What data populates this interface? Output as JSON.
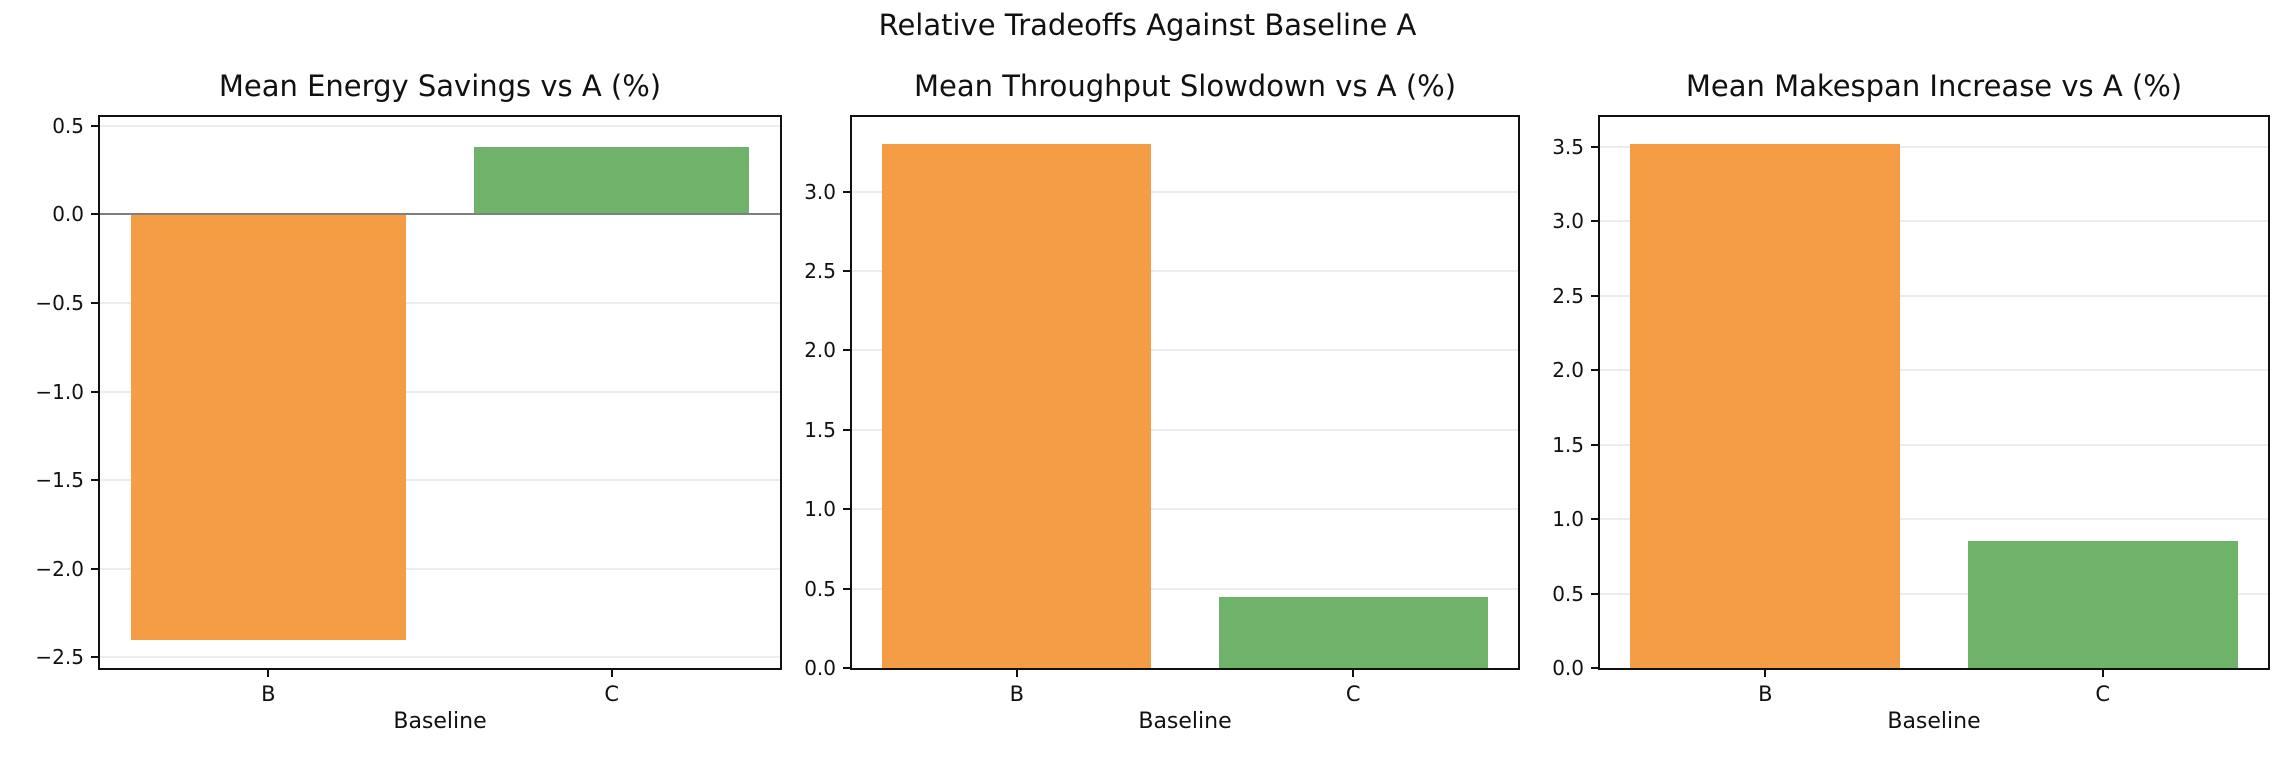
{
  "figure": {
    "suptitle": "Relative Tradeoffs Against Baseline A",
    "background": "#ffffff"
  },
  "colors": {
    "bar_orange": "#f49d44",
    "bar_green": "#6fb26a",
    "spine": "#111111",
    "grid": "#ececec",
    "zero_line": "#7f7f7f",
    "text": "#111111"
  },
  "chart_data": [
    {
      "type": "bar",
      "title": "Mean Energy Savings vs A (%)",
      "xlabel": "Baseline",
      "categories": [
        "B",
        "C"
      ],
      "values": [
        -2.4,
        0.38
      ],
      "bar_colors": [
        "#f49d44",
        "#6fb26a"
      ],
      "ylim": [
        -2.56,
        0.55
      ],
      "yticks": [
        0.5,
        0.0,
        -0.5,
        -1.0,
        -1.5,
        -2.0,
        -2.5
      ],
      "ytick_labels": [
        "0.5",
        "0.0",
        "−0.5",
        "−1.0",
        "−1.5",
        "−2.0",
        "−2.5"
      ],
      "grid": true,
      "zero_line": true,
      "legend": "none"
    },
    {
      "type": "bar",
      "title": "Mean Throughput Slowdown vs A (%)",
      "xlabel": "Baseline",
      "categories": [
        "B",
        "C"
      ],
      "values": [
        3.3,
        0.45
      ],
      "bar_colors": [
        "#f49d44",
        "#6fb26a"
      ],
      "ylim": [
        0.0,
        3.47
      ],
      "yticks": [
        3.0,
        2.5,
        2.0,
        1.5,
        1.0,
        0.5,
        0.0
      ],
      "ytick_labels": [
        "3.0",
        "2.5",
        "2.0",
        "1.5",
        "1.0",
        "0.5",
        "0.0"
      ],
      "grid": true,
      "zero_line": false,
      "legend": "none"
    },
    {
      "type": "bar",
      "title": "Mean Makespan Increase vs A (%)",
      "xlabel": "Baseline",
      "categories": [
        "B",
        "C"
      ],
      "values": [
        3.52,
        0.85
      ],
      "bar_colors": [
        "#f49d44",
        "#6fb36b"
      ],
      "ylim": [
        0.0,
        3.7
      ],
      "yticks": [
        3.5,
        3.0,
        2.5,
        2.0,
        1.5,
        1.0,
        0.5,
        0.0
      ],
      "ytick_labels": [
        "3.5",
        "3.0",
        "2.5",
        "2.0",
        "1.5",
        "1.0",
        "0.5",
        "0.0"
      ],
      "grid": true,
      "zero_line": false,
      "legend": "none"
    }
  ]
}
